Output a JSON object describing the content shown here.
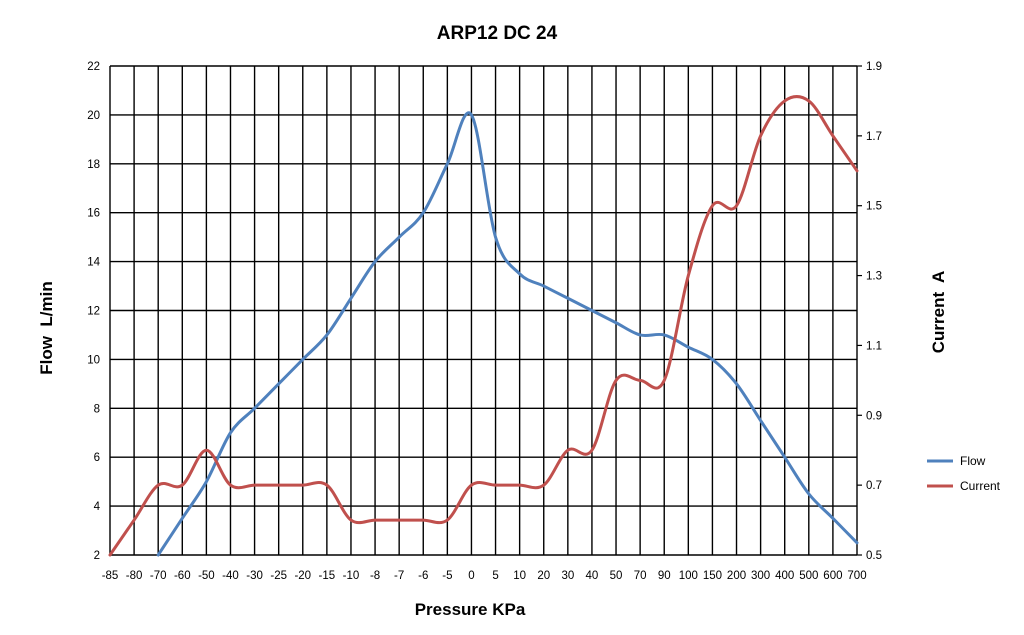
{
  "chart_data": {
    "type": "line",
    "title": "ARP12 DC 24",
    "xlabel": "Pressure KPa",
    "ylabel": "Flow  L/min",
    "y2label": "Current  A",
    "categories": [
      "-85",
      "-80",
      "-70",
      "-60",
      "-50",
      "-40",
      "-30",
      "-25",
      "-20",
      "-15",
      "-10",
      "-8",
      "-7",
      "-6",
      "-5",
      "0",
      "5",
      "10",
      "20",
      "30",
      "40",
      "50",
      "70",
      "90",
      "100",
      "150",
      "200",
      "300",
      "400",
      "500",
      "600",
      "700"
    ],
    "ylim": [
      2,
      22
    ],
    "yticks": [
      "2",
      "4",
      "6",
      "8",
      "10",
      "12",
      "14",
      "16",
      "18",
      "20",
      "22"
    ],
    "y2lim": [
      0.5,
      1.9
    ],
    "y2ticks": [
      "0.5",
      "0.7",
      "0.9",
      "1.1",
      "1.3",
      "1.5",
      "1.7",
      "1.9"
    ],
    "grid": true,
    "legend_position": "right",
    "series": [
      {
        "name": "Flow",
        "axis": "left",
        "color": "#4F81BD",
        "points": [
          {
            "x": "-70",
            "y": 2.0
          },
          {
            "x": "-60",
            "y": 3.5
          },
          {
            "x": "-50",
            "y": 5.0
          },
          {
            "x": "-40",
            "y": 7.0
          },
          {
            "x": "-30",
            "y": 8.0
          },
          {
            "x": "-25",
            "y": 9.0
          },
          {
            "x": "-20",
            "y": 10.0
          },
          {
            "x": "-15",
            "y": 11.0
          },
          {
            "x": "-10",
            "y": 12.5
          },
          {
            "x": "-8",
            "y": 14.0
          },
          {
            "x": "-7",
            "y": 15.0
          },
          {
            "x": "-6",
            "y": 16.0
          },
          {
            "x": "-5",
            "y": 18.0
          },
          {
            "x": "0",
            "y": 20.0
          },
          {
            "x": "5",
            "y": 15.0
          },
          {
            "x": "10",
            "y": 13.5
          },
          {
            "x": "20",
            "y": 13.0
          },
          {
            "x": "30",
            "y": 12.5
          },
          {
            "x": "40",
            "y": 12.0
          },
          {
            "x": "50",
            "y": 11.5
          },
          {
            "x": "70",
            "y": 11.0
          },
          {
            "x": "90",
            "y": 11.0
          },
          {
            "x": "100",
            "y": 10.5
          },
          {
            "x": "150",
            "y": 10.0
          },
          {
            "x": "200",
            "y": 9.0
          },
          {
            "x": "300",
            "y": 7.5
          },
          {
            "x": "400",
            "y": 6.0
          },
          {
            "x": "500",
            "y": 4.5
          },
          {
            "x": "600",
            "y": 3.5
          },
          {
            "x": "700",
            "y": 2.5
          }
        ]
      },
      {
        "name": "Current",
        "axis": "right",
        "color": "#C0504D",
        "points": [
          {
            "x": "-85",
            "y": 0.5
          },
          {
            "x": "-80",
            "y": 0.6
          },
          {
            "x": "-70",
            "y": 0.7
          },
          {
            "x": "-60",
            "y": 0.7
          },
          {
            "x": "-50",
            "y": 0.8
          },
          {
            "x": "-40",
            "y": 0.7
          },
          {
            "x": "-30",
            "y": 0.7
          },
          {
            "x": "-25",
            "y": 0.7
          },
          {
            "x": "-20",
            "y": 0.7
          },
          {
            "x": "-15",
            "y": 0.7
          },
          {
            "x": "-10",
            "y": 0.6
          },
          {
            "x": "-8",
            "y": 0.6
          },
          {
            "x": "-7",
            "y": 0.6
          },
          {
            "x": "-6",
            "y": 0.6
          },
          {
            "x": "-5",
            "y": 0.6
          },
          {
            "x": "0",
            "y": 0.7
          },
          {
            "x": "5",
            "y": 0.7
          },
          {
            "x": "10",
            "y": 0.7
          },
          {
            "x": "20",
            "y": 0.7
          },
          {
            "x": "30",
            "y": 0.8
          },
          {
            "x": "40",
            "y": 0.8
          },
          {
            "x": "50",
            "y": 1.0
          },
          {
            "x": "70",
            "y": 1.0
          },
          {
            "x": "90",
            "y": 1.0
          },
          {
            "x": "100",
            "y": 1.3
          },
          {
            "x": "150",
            "y": 1.5
          },
          {
            "x": "200",
            "y": 1.5
          },
          {
            "x": "300",
            "y": 1.7
          },
          {
            "x": "400",
            "y": 1.8
          },
          {
            "x": "500",
            "y": 1.8
          },
          {
            "x": "600",
            "y": 1.7
          },
          {
            "x": "700",
            "y": 1.6
          }
        ]
      }
    ]
  }
}
